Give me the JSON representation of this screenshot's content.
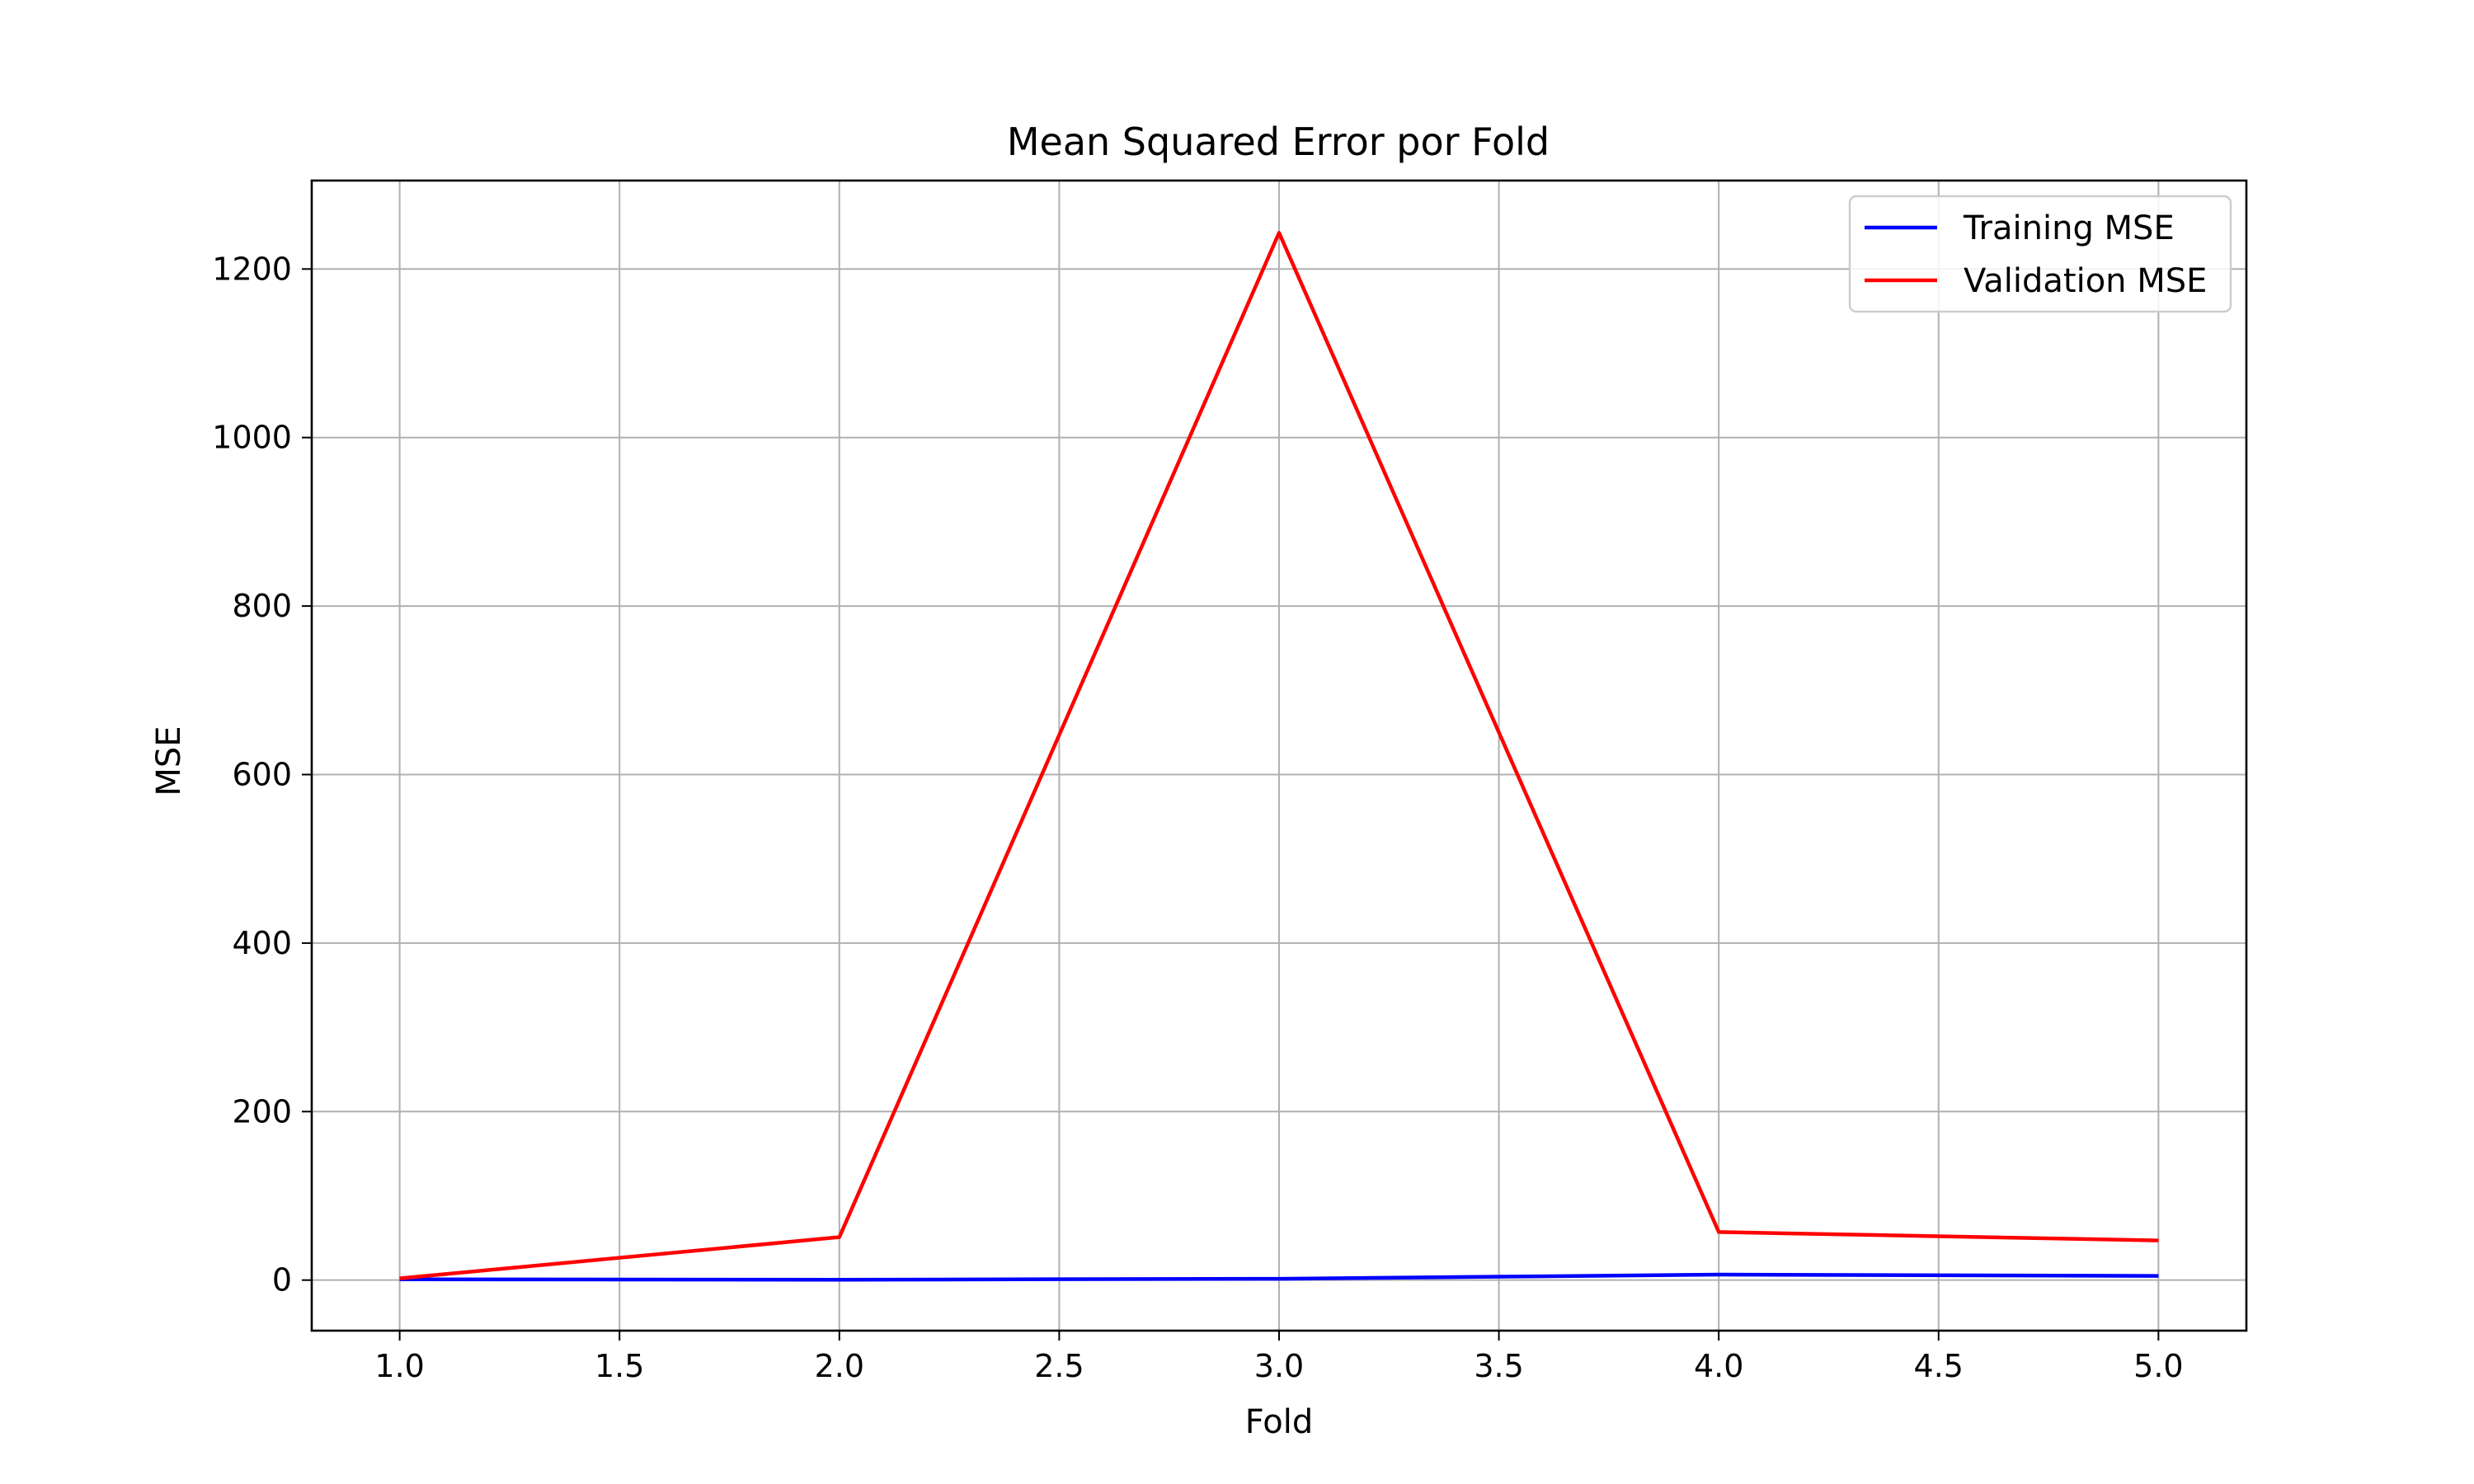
{
  "chart_data": {
    "type": "line",
    "title": "Mean Squared Error por Fold",
    "xlabel": "Fold",
    "ylabel": "MSE",
    "x": [
      1,
      2,
      3,
      4,
      5
    ],
    "series": [
      {
        "name": "Training MSE",
        "color": "#0000ff",
        "values": [
          1,
          0.5,
          1.5,
          6.5,
          5
        ]
      },
      {
        "name": "Validation MSE",
        "color": "#ff0000",
        "values": [
          2,
          51,
          1243,
          57,
          47
        ]
      }
    ],
    "xlim": [
      0.8,
      5.2
    ],
    "ylim": [
      -60,
      1305
    ],
    "xticks": [
      1.0,
      1.5,
      2.0,
      2.5,
      3.0,
      3.5,
      4.0,
      4.5,
      5.0
    ],
    "xtick_labels": [
      "1.0",
      "1.5",
      "2.0",
      "2.5",
      "3.0",
      "3.5",
      "4.0",
      "4.5",
      "5.0"
    ],
    "yticks": [
      0,
      200,
      400,
      600,
      800,
      1000,
      1200
    ],
    "ytick_labels": [
      "0",
      "200",
      "400",
      "600",
      "800",
      "1000",
      "1200"
    ],
    "grid": true,
    "legend_position": "top-right"
  }
}
